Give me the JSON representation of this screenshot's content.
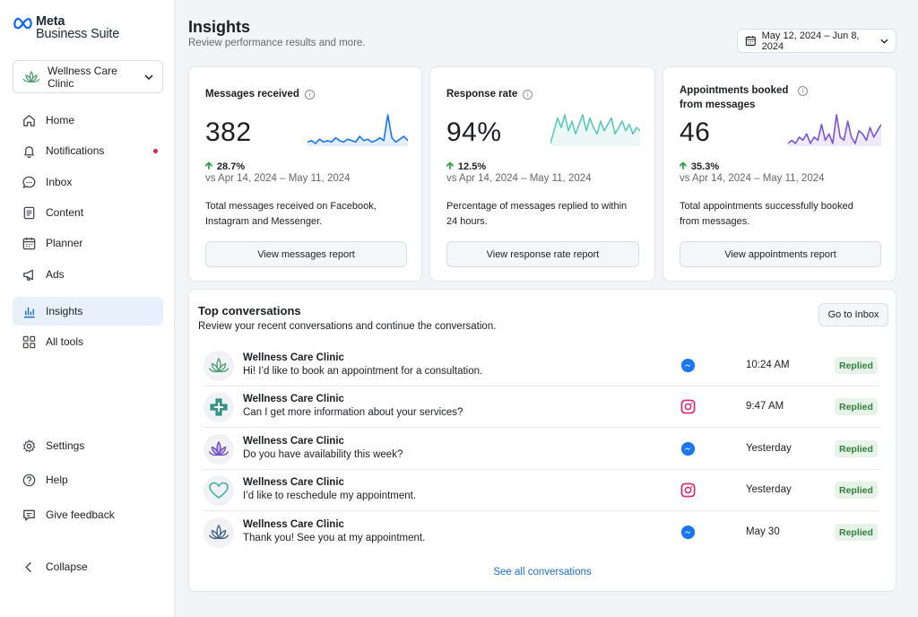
{
  "brand": {
    "line1": "Meta",
    "line2": "Business Suite",
    "color": "#0866ff"
  },
  "account": {
    "name": "Wellness Care Clinic",
    "icon": "lotus-icon"
  },
  "nav": [
    {
      "label": "Home",
      "icon": "home-icon"
    },
    {
      "label": "Notifications",
      "icon": "bell-icon",
      "dot": true
    },
    {
      "label": "Inbox",
      "icon": "chat-icon"
    },
    {
      "label": "Content",
      "icon": "content-icon"
    },
    {
      "label": "Planner",
      "icon": "calendar-icon"
    },
    {
      "label": "Ads",
      "icon": "megaphone-icon"
    },
    {
      "label": "Insights",
      "icon": "bar-chart-icon",
      "active": true
    },
    {
      "label": "All tools",
      "icon": "grid-icon"
    }
  ],
  "nav_bottom": [
    {
      "label": "Settings",
      "icon": "gear-icon"
    },
    {
      "label": "Help",
      "icon": "help-icon"
    },
    {
      "label": "Give feedback",
      "icon": "feedback-icon"
    },
    {
      "label": "Collapse",
      "icon": "chevron-left-icon"
    }
  ],
  "header": {
    "title": "Insights",
    "subtitle": "Review performance results and more.",
    "date_range": "May 12, 2024 – Jun 8, 2024"
  },
  "cards": [
    {
      "title": "Messages received",
      "value": "382",
      "change": "28.7%",
      "vs": "vs Apr 14, 2024 – May 11, 2024",
      "desc": "Total messages received on Facebook, Instagram and Messenger.",
      "button": "View messages report",
      "color": "#1877f2",
      "trend": [
        5,
        6,
        4,
        7,
        5,
        6,
        5,
        8,
        6,
        5,
        7,
        6,
        5,
        9,
        6,
        7,
        5,
        6,
        8,
        6,
        24,
        8,
        5,
        7,
        9,
        6
      ]
    },
    {
      "title": "Response rate",
      "value": "94%",
      "change": "12.5%",
      "vs": "vs Apr 14, 2024 – May 11, 2024",
      "desc": "Percentage of messages replied to within 24 hours.",
      "button": "View response rate report",
      "color": "#5cc9b8",
      "trend": [
        6,
        10,
        14,
        11,
        15,
        10,
        13,
        9,
        12,
        15,
        10,
        14,
        11,
        9,
        13,
        10,
        12,
        14,
        9,
        11,
        13,
        10,
        12,
        9,
        11,
        10
      ]
    },
    {
      "title": "Appointments booked from messages",
      "value": "46",
      "change": "35.3%",
      "vs": "vs Apr 14, 2024 – May 11, 2024",
      "desc": "Total appointments successfully booked from messages.",
      "button": "View appointments report",
      "color": "#7b54d9",
      "trend": [
        3,
        4,
        3,
        5,
        4,
        6,
        3,
        5,
        4,
        9,
        4,
        6,
        3,
        12,
        5,
        4,
        10,
        5,
        3,
        7,
        6,
        4,
        8,
        5,
        7,
        9
      ]
    }
  ],
  "conversations": {
    "title": "Top conversations",
    "subtitle": "Review your recent conversations and continue the conversation.",
    "inbox_button": "Go to Inbox",
    "see_all": "See all conversations",
    "rows": [
      {
        "name": "Wellness Care Clinic",
        "message": "Hi! I’d like to book an appointment for a consultation.",
        "channel": "messenger-icon",
        "time": "10:24 AM",
        "status": "Replied",
        "avatar": "lotus-avatar-icon"
      },
      {
        "name": "Wellness Care Clinic",
        "message": "Can I get more information about your services?",
        "channel": "instagram-icon",
        "time": "9:47 AM",
        "status": "Replied",
        "avatar": "medical-cross-icon"
      },
      {
        "name": "Wellness Care Clinic",
        "message": "Do you have availability this week?",
        "channel": "messenger-icon",
        "time": "Yesterday",
        "status": "Replied",
        "avatar": "purple-lotus-icon"
      },
      {
        "name": "Wellness Care Clinic",
        "message": "I’d like to reschedule my appointment.",
        "channel": "instagram-icon",
        "time": "Yesterday",
        "status": "Replied",
        "avatar": "heart-icon"
      },
      {
        "name": "Wellness Care Clinic",
        "message": "Thank you! See you at my appointment.",
        "channel": "messenger-icon",
        "time": "May 30",
        "status": "Replied",
        "avatar": "blue-lotus-icon"
      }
    ]
  }
}
